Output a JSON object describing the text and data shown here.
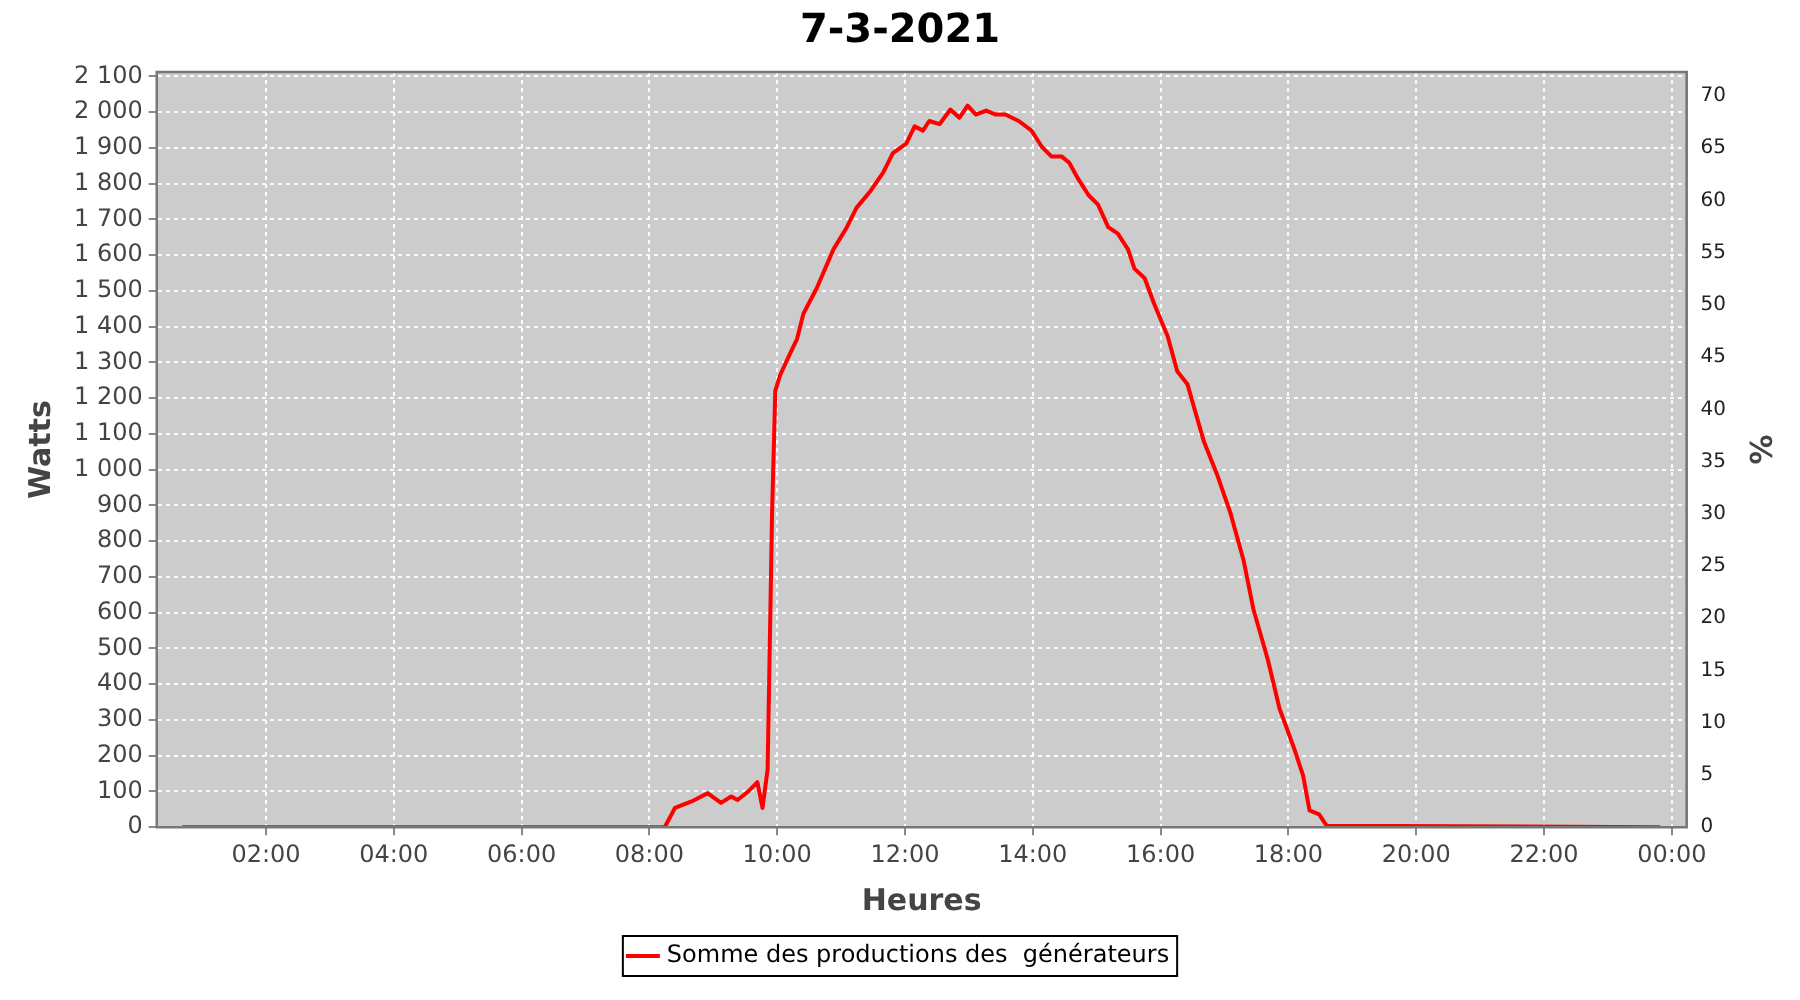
{
  "chart_data": {
    "type": "line",
    "title": "7-3-2021",
    "xlabel": "Heures",
    "ylabel": "Watts",
    "y2label": "%",
    "xlim": [
      0.29,
      24.23
    ],
    "xticks": [
      {
        "value": 2,
        "label": "02:00"
      },
      {
        "value": 4,
        "label": "04:00"
      },
      {
        "value": 6,
        "label": "06:00"
      },
      {
        "value": 8,
        "label": "08:00"
      },
      {
        "value": 10,
        "label": "10:00"
      },
      {
        "value": 12,
        "label": "12:00"
      },
      {
        "value": 14,
        "label": "14:00"
      },
      {
        "value": 16,
        "label": "16:00"
      },
      {
        "value": 18,
        "label": "18:00"
      },
      {
        "value": 20,
        "label": "20:00"
      },
      {
        "value": 22,
        "label": "22:00"
      },
      {
        "value": 24,
        "label": "00:00"
      }
    ],
    "ylim": [
      0,
      2112
    ],
    "yticks": [
      0,
      100,
      200,
      300,
      400,
      500,
      600,
      700,
      800,
      900,
      {
        "value": 1000,
        "label": "1 000"
      },
      {
        "value": 1100,
        "label": "1 100"
      },
      {
        "value": 1200,
        "label": "1 200"
      },
      {
        "value": 1300,
        "label": "1 300"
      },
      {
        "value": 1400,
        "label": "1 400"
      },
      {
        "value": 1500,
        "label": "1 500"
      },
      {
        "value": 1600,
        "label": "1 600"
      },
      {
        "value": 1700,
        "label": "1 700"
      },
      {
        "value": 1800,
        "label": "1 800"
      },
      {
        "value": 1900,
        "label": "1 900"
      },
      {
        "value": 2000,
        "label": "2 000"
      },
      {
        "value": 2100,
        "label": "2 100"
      }
    ],
    "y2lim": [
      0,
      72.3
    ],
    "y2ticks": [
      0,
      5,
      10,
      15,
      20,
      25,
      30,
      35,
      40,
      45,
      50,
      55,
      60,
      65,
      70
    ],
    "grid": true,
    "legend": "bottom",
    "marker": "none",
    "line_style": "solid",
    "series": [
      {
        "name": "Somme des productions des  générateurs",
        "color": "#ff0000",
        "x": [
          0.69,
          8.24,
          8.4,
          8.66,
          8.91,
          9.12,
          9.28,
          9.38,
          9.54,
          9.69,
          9.77,
          9.85,
          9.92,
          9.97,
          10.05,
          10.21,
          10.31,
          10.41,
          10.62,
          10.88,
          11.09,
          11.24,
          11.45,
          11.66,
          11.81,
          12.02,
          12.15,
          12.28,
          12.38,
          12.54,
          12.71,
          12.85,
          12.98,
          13.11,
          13.27,
          13.42,
          13.57,
          13.78,
          13.98,
          14.14,
          14.29,
          14.45,
          14.57,
          14.71,
          14.87,
          15.02,
          15.18,
          15.33,
          15.49,
          15.59,
          15.75,
          15.9,
          16.11,
          16.26,
          16.42,
          16.52,
          16.68,
          16.88,
          17.09,
          17.3,
          17.45,
          17.68,
          17.86,
          18.08,
          18.23,
          18.33,
          18.48,
          18.6,
          23.82
        ],
        "values": [
          0,
          0,
          54,
          72,
          95,
          68,
          86,
          76,
          99,
          126,
          54,
          162,
          880,
          1221,
          1266,
          1328,
          1365,
          1436,
          1508,
          1616,
          1678,
          1732,
          1777,
          1831,
          1885,
          1912,
          1960,
          1948,
          1975,
          1966,
          2007,
          1984,
          2018,
          1993,
          2004,
          1993,
          1993,
          1975,
          1948,
          1903,
          1876,
          1876,
          1858,
          1813,
          1768,
          1741,
          1678,
          1660,
          1616,
          1562,
          1535,
          1463,
          1373,
          1275,
          1239,
          1176,
          1077,
          988,
          880,
          745,
          611,
          467,
          332,
          225,
          144,
          47,
          36,
          4,
          0
        ]
      }
    ]
  }
}
